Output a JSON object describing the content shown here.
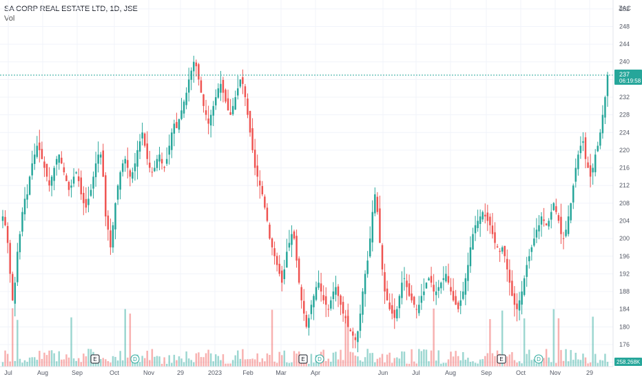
{
  "header": {
    "title": "SA CORP REAL ESTATE LTD, 1D, JSE",
    "volume_label": "Vol"
  },
  "price_axis": {
    "currency": "ZAC",
    "ticks": [
      "252",
      "248",
      "244",
      "240",
      "236",
      "232",
      "228",
      "224",
      "220",
      "216",
      "212",
      "208",
      "204",
      "200",
      "196",
      "192",
      "188",
      "184",
      "180",
      "176",
      "172"
    ]
  },
  "last_price": {
    "value": "237",
    "countdown": "06:19:58",
    "color": "#26a69a"
  },
  "volume_badge": {
    "value": "258.268K",
    "color": "#26a69a"
  },
  "time_axis": {
    "labels": [
      "Jul",
      "Aug",
      "Sep",
      "Oct",
      "Nov",
      "29",
      "2023",
      "Feb",
      "Mar",
      "Apr",
      "Jun",
      "Jul",
      "Aug",
      "Sep",
      "Oct",
      "Nov",
      "29"
    ]
  },
  "events": [
    {
      "type": "earnings",
      "label": "E"
    },
    {
      "type": "dividend",
      "label": "D"
    },
    {
      "type": "earnings",
      "label": "E"
    },
    {
      "type": "dividend",
      "label": "D"
    },
    {
      "type": "earnings",
      "label": "E"
    },
    {
      "type": "dividend",
      "label": "D"
    }
  ],
  "colors": {
    "up": "#26a69a",
    "down": "#ef5350",
    "grid": "#f0f3fa",
    "axis_line": "#e0e3eb"
  },
  "chart_data": {
    "type": "candlestick",
    "title": "SA CORP REAL ESTATE LTD, 1D, JSE",
    "ylim": [
      171,
      254
    ],
    "y_unit": "ZAC",
    "series": [
      {
        "name": "Price",
        "close": [
          205,
          203,
          199,
          192,
          186,
          190,
          197,
          201,
          206,
          209,
          210,
          214,
          217,
          219,
          221,
          220,
          218,
          216,
          214,
          212,
          214,
          216,
          218,
          219,
          217,
          215,
          213,
          211,
          212,
          214,
          215,
          213,
          210,
          208,
          207,
          209,
          211,
          214,
          217,
          219,
          219,
          214,
          205,
          202,
          198,
          203,
          208,
          212,
          215,
          217,
          218,
          216,
          214,
          215,
          217,
          220,
          222,
          224,
          221,
          218,
          216,
          215,
          216,
          218,
          219,
          217,
          216,
          218,
          221,
          224,
          226,
          225,
          227,
          229,
          231,
          233,
          236,
          238,
          240,
          239,
          236,
          233,
          230,
          228,
          226,
          228,
          230,
          232,
          234,
          235,
          233,
          231,
          229,
          228,
          230,
          232,
          234,
          236,
          235,
          232,
          228,
          224,
          220,
          216,
          214,
          212,
          210,
          207,
          204,
          200,
          198,
          196,
          194,
          192,
          190,
          193,
          197,
          199,
          201,
          200,
          195,
          190,
          186,
          183,
          180,
          182,
          185,
          187,
          189,
          190,
          188,
          186,
          185,
          184,
          186,
          188,
          189,
          187,
          185,
          183,
          182,
          180,
          179,
          178,
          177,
          179,
          183,
          188,
          192,
          195,
          200,
          206,
          210,
          206,
          199,
          193,
          188,
          186,
          184,
          183,
          182,
          184,
          187,
          190,
          191,
          189,
          187,
          186,
          185,
          184,
          185,
          187,
          188,
          190,
          191,
          190,
          188,
          188,
          189,
          190,
          191,
          192,
          190,
          188,
          186,
          185,
          184,
          186,
          188,
          191,
          194,
          198,
          201,
          203,
          204,
          205,
          206,
          205,
          204,
          203,
          201,
          199,
          198,
          197,
          198,
          196,
          193,
          190,
          187,
          185,
          184,
          186,
          188,
          191,
          194,
          196,
          198,
          200,
          202,
          203,
          205,
          204,
          203,
          204,
          206,
          208,
          206,
          204,
          201,
          200,
          202,
          205,
          208,
          212,
          216,
          219,
          221,
          222,
          218,
          216,
          214,
          216,
          219,
          221,
          224,
          228,
          232,
          237
        ]
      }
    ],
    "last_value": 237,
    "volume_last": "258.268K"
  }
}
